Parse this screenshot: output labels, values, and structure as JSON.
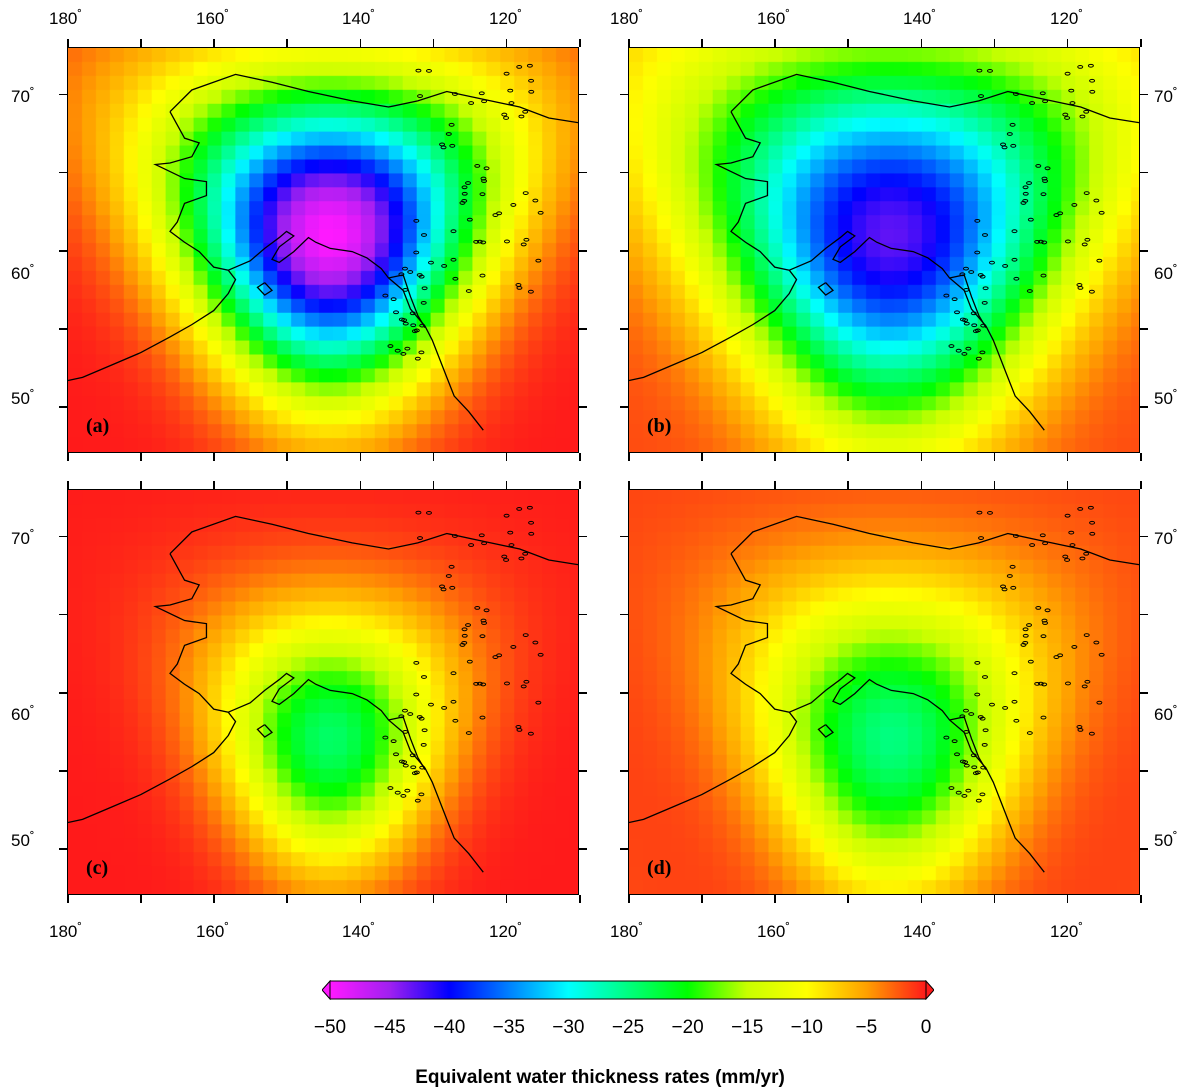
{
  "map": {
    "lon_ticks": [
      "180",
      "160",
      "140",
      "120"
    ],
    "lat_ticks": [
      "70",
      "60",
      "50"
    ],
    "lon_range": [
      180,
      110
    ],
    "lat_range": [
      73,
      47
    ],
    "colors": {
      "ocean_zero": "#ff1a1a",
      "coastline": "#000000"
    }
  },
  "panels": [
    {
      "label": "(a)",
      "center_lon": 144,
      "center_lat": 61,
      "peak_mm_yr": -50,
      "radius_deg": 12,
      "background_mm_yr": 0
    },
    {
      "label": "(b)",
      "center_lon": 144,
      "center_lat": 61,
      "peak_mm_yr": -43,
      "radius_deg": 15,
      "background_mm_yr": -2
    },
    {
      "label": "(c)",
      "center_lon": 144,
      "center_lat": 57,
      "peak_mm_yr": -24,
      "radius_deg": 10,
      "background_mm_yr": 0
    },
    {
      "label": "(d)",
      "center_lon": 144,
      "center_lat": 57,
      "peak_mm_yr": -25,
      "radius_deg": 12,
      "background_mm_yr": -2
    }
  ],
  "colorbar": {
    "min": -50,
    "max": 0,
    "tick_labels": [
      "−50",
      "−45",
      "−40",
      "−35",
      "−30",
      "−25",
      "−20",
      "−15",
      "−10",
      "−5",
      "0"
    ],
    "stops": [
      "#ff19ff",
      "#a020f0",
      "#0000ff",
      "#0080ff",
      "#00ffff",
      "#00ff80",
      "#00ff00",
      "#c8ff00",
      "#ffff00",
      "#ffa000",
      "#ff1a1a"
    ],
    "title": "Equivalent water thickness rates (mm/yr)"
  }
}
